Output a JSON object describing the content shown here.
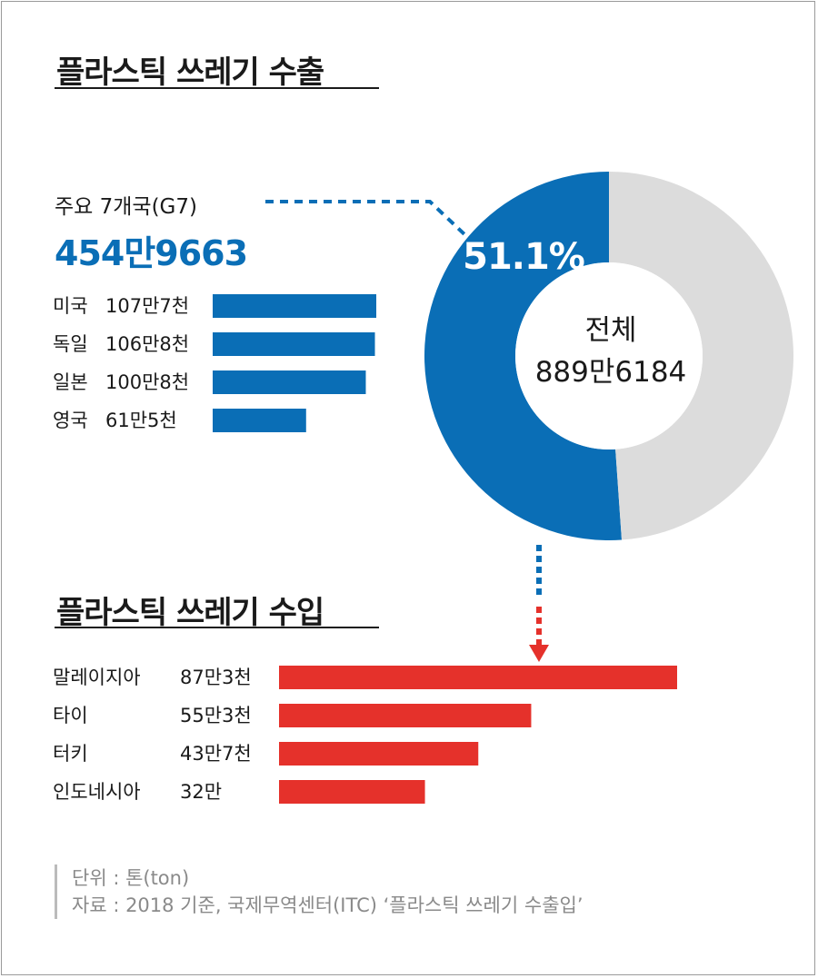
{
  "export_title": "플라스틱 쓰레기 수출",
  "import_title": "플라스틱 쓰레기 수입",
  "g7": {
    "label": "주요 7개국(G7)",
    "total": "454만9663"
  },
  "donut": {
    "percent_label": "51.1%",
    "center_line1": "전체",
    "center_line2": "889만6184"
  },
  "source": {
    "unit": "단위 : 톤(ton)",
    "note": "자료 : 2018 기준, 국제무역센터(ITC) ‘플라스틱 쓰레기 수출입’"
  },
  "colors": {
    "export": "#0a6eb6",
    "import": "#e5312b",
    "donut_rest": "#dcdcdc"
  },
  "chart_data": [
    {
      "type": "bar",
      "orientation": "horizontal",
      "title": "플라스틱 쓰레기 수출",
      "categories": [
        "미국",
        "독일",
        "일본",
        "영국"
      ],
      "value_labels": [
        "107만7천",
        "106만8천",
        "100만8천",
        "61만5천"
      ],
      "values": [
        1077000,
        1068000,
        1008000,
        615000
      ]
    },
    {
      "type": "pie",
      "subtype": "donut",
      "slices": [
        {
          "name": "주요 7개국(G7)",
          "value": 51.1
        },
        {
          "value": 48.9
        }
      ],
      "total": 8896184
    },
    {
      "type": "bar",
      "orientation": "horizontal",
      "title": "플라스틱 쓰레기 수입",
      "categories": [
        "말레이지아",
        "타이",
        "터키",
        "인도네시아"
      ],
      "value_labels": [
        "87만3천",
        "55만3천",
        "43만7천",
        "32만"
      ],
      "values": [
        873000,
        553000,
        437000,
        320000
      ]
    }
  ]
}
